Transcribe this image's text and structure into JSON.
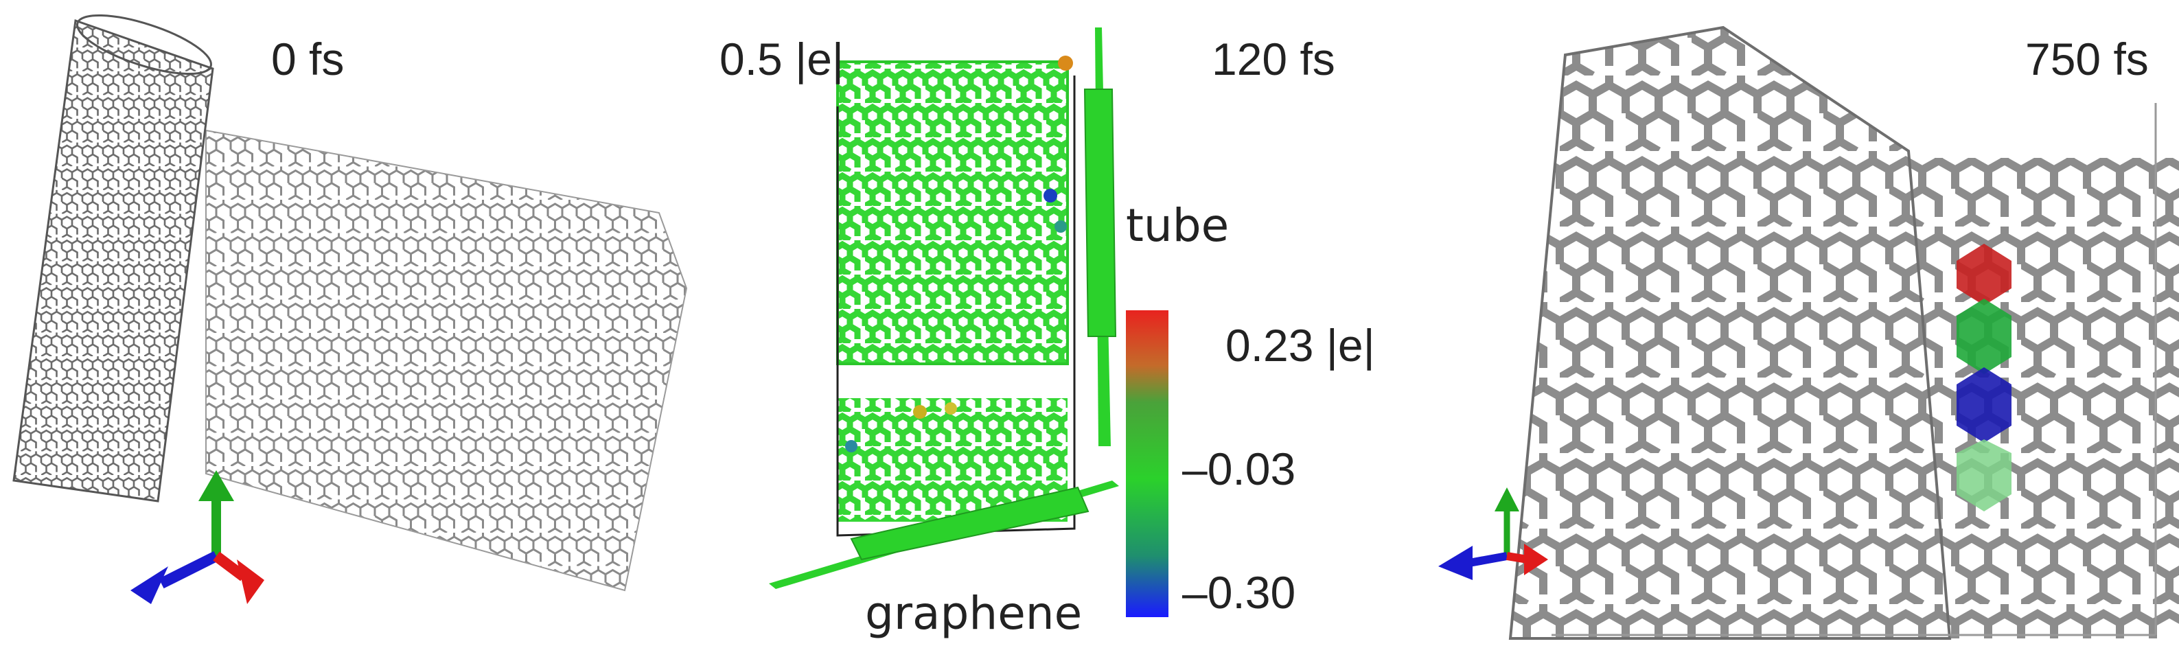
{
  "panels": {
    "t0": {
      "time": "0 fs"
    },
    "t120": {
      "time": "120 fs",
      "charge_scale": "0.5 |e|",
      "tube_label": "tube",
      "graphene_label": "graphene"
    },
    "t750": {
      "time": "750 fs"
    }
  },
  "colorbar": {
    "max_label": "0.23 |e|",
    "mid_label": "–0.03",
    "min_label": "–0.30",
    "colors": [
      "#e8231f",
      "#2bd12b",
      "#1a1aff"
    ]
  },
  "colors": {
    "tube_gray": "#7a7a7a",
    "charge_green": "#35d735",
    "axis_x": "#e01a1a",
    "axis_y": "#1fa81f",
    "axis_z": "#1a1ad0"
  }
}
